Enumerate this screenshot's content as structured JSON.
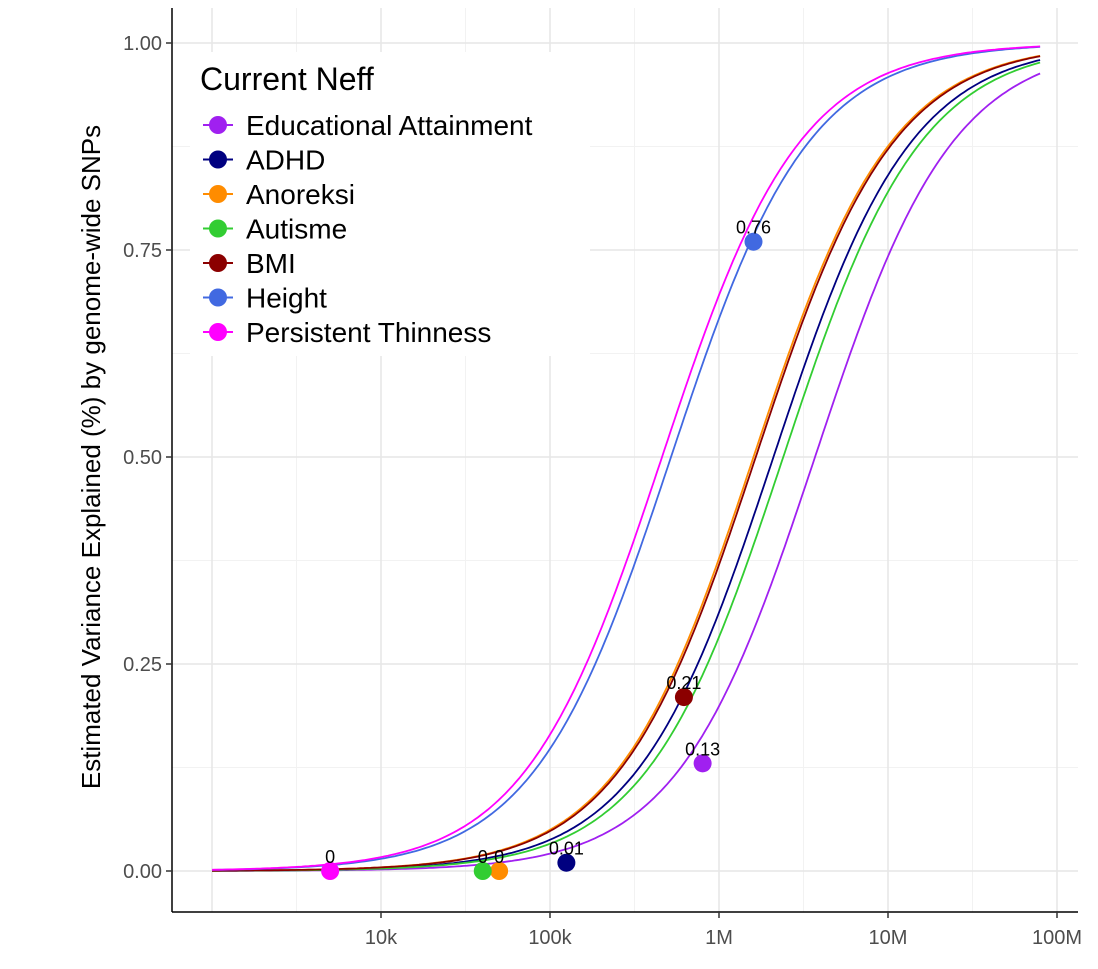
{
  "chart_data": {
    "type": "line",
    "title": "",
    "xlabel": "",
    "ylabel": "Estimated Variance Explained (%) by genome-wide SNPs",
    "x_scale": "log10",
    "xlim": [
      1000,
      100000000
    ],
    "ylim": [
      0,
      1
    ],
    "x_ticks": [
      10000,
      100000,
      1000000,
      10000000,
      100000000
    ],
    "x_tick_labels": [
      "10k",
      "100k",
      "1M",
      "10M",
      "100M"
    ],
    "y_ticks": [
      0,
      0.25,
      0.5,
      0.75,
      1
    ],
    "y_tick_labels": [
      "0.00",
      "0.25",
      "0.50",
      "0.75",
      "1.00"
    ],
    "grid": true,
    "legend": {
      "title": "Current Neff",
      "position": "top-left"
    },
    "series": [
      {
        "name": "Educational Attainment",
        "color": "#a020f0",
        "curve_midpoint_n": 3700000,
        "current": {
          "n": 800000,
          "value": 0.13,
          "label": "0.13"
        }
      },
      {
        "name": "ADHD",
        "color": "#000080",
        "curve_midpoint_n": 2100000,
        "current": {
          "n": 125000,
          "value": 0.01,
          "label": "0.01"
        }
      },
      {
        "name": "Anoreksi",
        "color": "#ff8c00",
        "curve_midpoint_n": 1600000,
        "current": {
          "n": 50000,
          "value": 0,
          "label": "0"
        }
      },
      {
        "name": "Autisme",
        "color": "#32cd32",
        "curve_midpoint_n": 2400000,
        "current": {
          "n": 40000,
          "value": 0,
          "label": "0"
        }
      },
      {
        "name": "BMI",
        "color": "#8b0000",
        "curve_midpoint_n": 1650000,
        "current": {
          "n": 620000,
          "value": 0.21,
          "label": "0.21"
        }
      },
      {
        "name": "Height",
        "color": "#4169e1",
        "curve_midpoint_n": 520000,
        "current": {
          "n": 1600000,
          "value": 0.76,
          "label": "0.76"
        }
      },
      {
        "name": "Persistent Thinness",
        "color": "#ff00ff",
        "curve_midpoint_n": 460000,
        "current": {
          "n": 5000,
          "value": 0,
          "label": "0"
        }
      }
    ]
  }
}
